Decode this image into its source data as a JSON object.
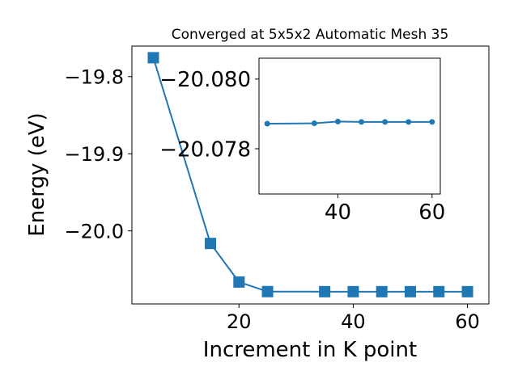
{
  "chart_data": [
    {
      "type": "line",
      "title": "Converged at 5x5x2 Automatic Mesh 35",
      "xlabel": "Increment in K point",
      "ylabel": "Energy (eV)",
      "x": [
        5,
        15,
        20,
        25,
        35,
        40,
        45,
        50,
        55,
        60
      ],
      "series": [
        {
          "values": [
            -19.7755,
            -20.0163,
            -20.0663,
            -20.0787,
            -20.0788,
            -20.0788,
            -20.0788,
            -20.0788,
            -20.0788,
            -20.0788
          ],
          "marker": "square",
          "color": "#1f77b4"
        }
      ],
      "xlim": [
        1.25,
        63.75
      ],
      "ylim": [
        -20.0947,
        -19.7604
      ],
      "xticks": [
        20,
        40,
        60
      ],
      "xtick_labels": [
        "20",
        "40",
        "60"
      ],
      "yticks": [
        -20.0,
        -19.9,
        -19.8
      ],
      "ytick_labels": [
        "−20.0",
        "−19.9",
        "−19.8"
      ],
      "grid": false,
      "legend": "none"
    },
    {
      "type": "line",
      "role": "inset",
      "x": [
        25,
        35,
        40,
        45,
        50,
        55,
        60
      ],
      "series": [
        {
          "values": [
            -20.07872,
            -20.07873,
            -20.07878,
            -20.07877,
            -20.07877,
            -20.07877,
            -20.07877
          ],
          "marker": "circle",
          "color": "#1f77b4"
        }
      ],
      "xlim": [
        23.25,
        61.75
      ],
      "ylim": [
        -20.0767,
        -20.0806
      ],
      "y_inverted": true,
      "xticks": [
        40,
        60
      ],
      "xtick_labels": [
        "40",
        "60"
      ],
      "yticks": [
        -20.08,
        -20.078
      ],
      "ytick_labels": [
        "−20.080",
        "−20.078"
      ],
      "grid": false,
      "legend": "none"
    }
  ]
}
